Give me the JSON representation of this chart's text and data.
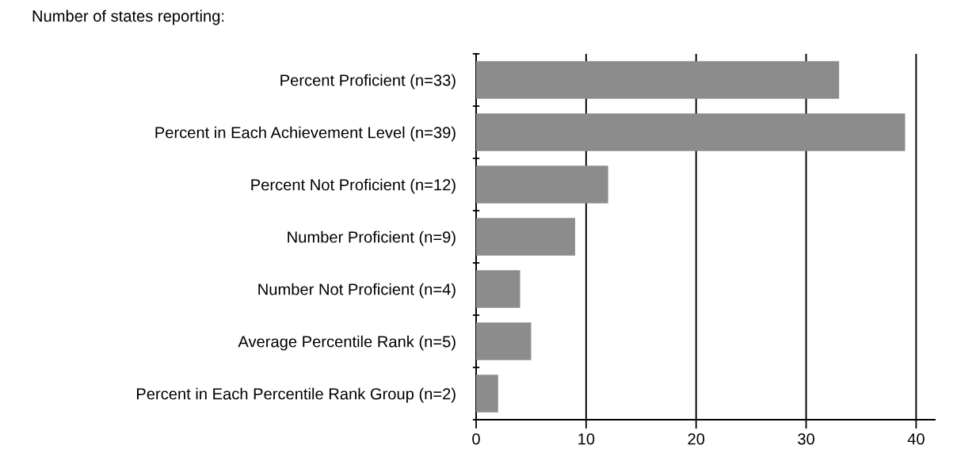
{
  "chart_data": {
    "type": "bar",
    "orientation": "horizontal",
    "title": "Number of states reporting:",
    "categories": [
      "Percent Proficient (n=33)",
      "Percent in Each Achievement Level (n=39)",
      "Percent Not Proficient (n=12)",
      "Number Proficient (n=9)",
      "Number Not Proficient (n=4)",
      "Average Percentile Rank (n=5)",
      "Percent in Each Percentile Rank Group (n=2)"
    ],
    "values": [
      33,
      39,
      12,
      9,
      4,
      5,
      2
    ],
    "color": "#8c8c8c",
    "xlim": [
      0,
      41.7
    ],
    "xticks": [
      0,
      10,
      20,
      30,
      40
    ],
    "grid": "x"
  }
}
